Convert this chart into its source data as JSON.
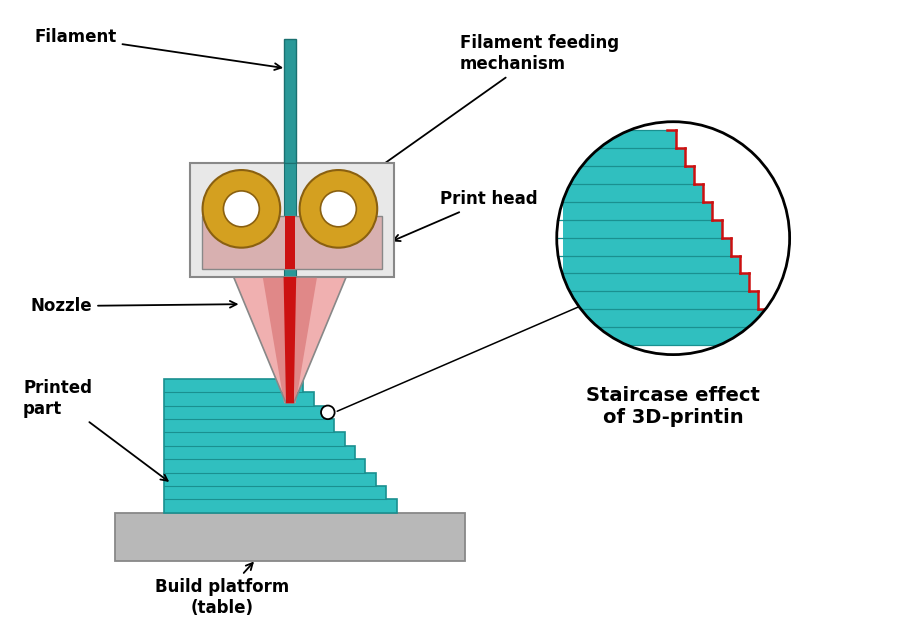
{
  "bg_color": "#ffffff",
  "teal_color": "#30bfbf",
  "teal_dark": "#1a9090",
  "gray_light": "#e8e8e8",
  "gray_med": "#b8b8b8",
  "gray_dark": "#888888",
  "red_color": "#cc1111",
  "pink_light": "#f0b0b0",
  "pink_mid": "#e08888",
  "gold_color": "#d4a020",
  "filament_teal": "#2a9898",
  "labels": {
    "filament": "Filament",
    "feeding": "Filament feeding\nmechanism",
    "print_head": "Print head",
    "nozzle": "Nozzle",
    "printed_part": "Printed\npart",
    "build_platform": "Build platform\n(table)",
    "staircase": "Staircase effect\nof 3D-printin"
  },
  "figsize": [
    9.0,
    6.19
  ],
  "dpi": 100
}
